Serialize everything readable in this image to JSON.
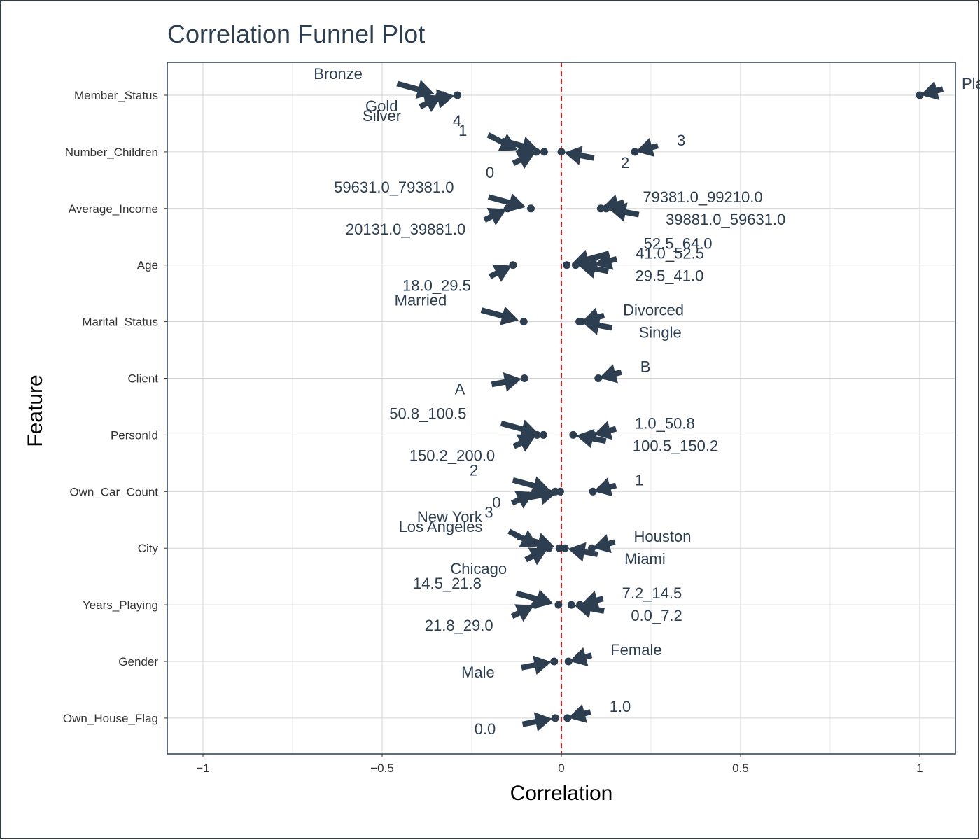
{
  "chart_data": {
    "type": "scatter",
    "title": "Correlation Funnel Plot",
    "xlabel": "Correlation",
    "ylabel": "Feature",
    "xlim": [
      -1.1,
      1.1
    ],
    "xticks": [
      -1,
      -0.5,
      0,
      0.5,
      1
    ],
    "xtick_labels": [
      "−1",
      "−0.5",
      "0",
      "0.5",
      "1"
    ],
    "reference_line": 0,
    "grid": true,
    "categories": [
      "Member_Status",
      "Number_Children",
      "Average_Income",
      "Age",
      "Marital_Status",
      "Client",
      "PersonId",
      "Own_Car_Count",
      "City",
      "Years_Playing",
      "Gender",
      "Own_House_Flag"
    ],
    "colors": {
      "points": "#2c3e50",
      "reference": "#e41a1c",
      "grid": "#d3d3d3",
      "border": "#2c3e50"
    },
    "points": [
      {
        "feature": "Member_Status",
        "x": 1.0,
        "label": "Platinum"
      },
      {
        "feature": "Member_Status",
        "x": -0.29,
        "label": "Gold"
      },
      {
        "feature": "Member_Status",
        "x": -0.34,
        "label": "Bronze"
      },
      {
        "feature": "Member_Status",
        "x": -0.33,
        "label": "Silver"
      },
      {
        "feature": "Number_Children",
        "x": 0.205,
        "label": "3"
      },
      {
        "feature": "Number_Children",
        "x": 0.0,
        "label": "2"
      },
      {
        "feature": "Number_Children",
        "x": -0.048,
        "label": "1"
      },
      {
        "feature": "Number_Children",
        "x": -0.07,
        "label": "0"
      },
      {
        "feature": "Number_Children",
        "x": -0.113,
        "label": "4"
      },
      {
        "feature": "Average_Income",
        "x": 0.11,
        "label": "79381.0_99210.0"
      },
      {
        "feature": "Average_Income",
        "x": 0.125,
        "label": "39881.0_59631.0"
      },
      {
        "feature": "Average_Income",
        "x": -0.085,
        "label": "59631.0_79381.0"
      },
      {
        "feature": "Average_Income",
        "x": -0.15,
        "label": "20131.0_39881.0"
      },
      {
        "feature": "Age",
        "x": 0.09,
        "label": "41.0_52.5"
      },
      {
        "feature": "Age",
        "x": 0.04,
        "label": "29.5_41.0"
      },
      {
        "feature": "Age",
        "x": 0.015,
        "label": "52.5_64.0"
      },
      {
        "feature": "Age",
        "x": -0.135,
        "label": "18.0_29.5"
      },
      {
        "feature": "Marital_Status",
        "x": 0.055,
        "label": "Divorced"
      },
      {
        "feature": "Marital_Status",
        "x": 0.05,
        "label": "Single"
      },
      {
        "feature": "Marital_Status",
        "x": -0.105,
        "label": "Married"
      },
      {
        "feature": "Client",
        "x": 0.103,
        "label": "B"
      },
      {
        "feature": "Client",
        "x": -0.103,
        "label": "A"
      },
      {
        "feature": "PersonId",
        "x": 0.088,
        "label": "1.0_50.8"
      },
      {
        "feature": "PersonId",
        "x": 0.033,
        "label": "100.5_150.2"
      },
      {
        "feature": "PersonId",
        "x": -0.05,
        "label": "50.8_100.5"
      },
      {
        "feature": "PersonId",
        "x": -0.068,
        "label": "150.2_200.0"
      },
      {
        "feature": "Own_Car_Count",
        "x": 0.088,
        "label": "1"
      },
      {
        "feature": "Own_Car_Count",
        "x": -0.003,
        "label": "0"
      },
      {
        "feature": "Own_Car_Count",
        "x": -0.017,
        "label": "2"
      },
      {
        "feature": "Own_Car_Count",
        "x": -0.073,
        "label": "3"
      },
      {
        "feature": "City",
        "x": 0.085,
        "label": "Houston"
      },
      {
        "feature": "City",
        "x": 0.01,
        "label": "Miami"
      },
      {
        "feature": "City",
        "x": -0.005,
        "label": "Los Angeles"
      },
      {
        "feature": "City",
        "x": -0.035,
        "label": "Chicago"
      },
      {
        "feature": "City",
        "x": -0.055,
        "label": "New York"
      },
      {
        "feature": "Years_Playing",
        "x": 0.052,
        "label": "7.2_14.5"
      },
      {
        "feature": "Years_Playing",
        "x": 0.028,
        "label": "0.0_7.2"
      },
      {
        "feature": "Years_Playing",
        "x": -0.008,
        "label": "14.5_21.8"
      },
      {
        "feature": "Years_Playing",
        "x": -0.073,
        "label": "21.8_29.0"
      },
      {
        "feature": "Gender",
        "x": 0.02,
        "label": "Female"
      },
      {
        "feature": "Gender",
        "x": -0.02,
        "label": "Male"
      },
      {
        "feature": "Own_House_Flag",
        "x": 0.017,
        "label": "1.0"
      },
      {
        "feature": "Own_House_Flag",
        "x": -0.017,
        "label": "0.0"
      }
    ]
  }
}
